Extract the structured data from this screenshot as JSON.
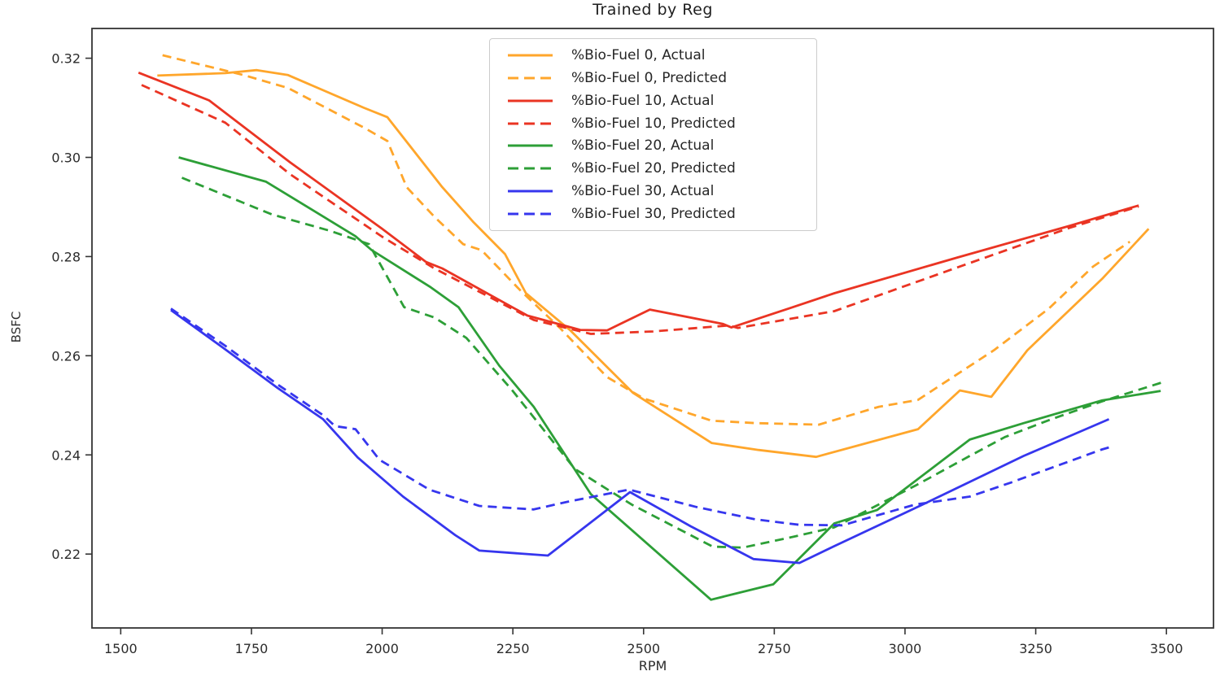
{
  "chart_data": {
    "type": "line",
    "title": "Trained by Reg",
    "xlabel": "RPM",
    "ylabel": "BSFC",
    "xlim": [
      1445,
      3590
    ],
    "ylim": [
      0.2051,
      0.326
    ],
    "xtick_labels": [
      "1500",
      "1750",
      "2000",
      "2250",
      "2500",
      "2750",
      "3000",
      "3250",
      "3500"
    ],
    "ytick_labels": [
      "0.22",
      "0.24",
      "0.26",
      "0.28",
      "0.30",
      "0.32"
    ],
    "grid": false,
    "legend_position": "upper center",
    "colors": {
      "bio_fuel_0": "#FFA62B",
      "bio_fuel_10": "#EA3423",
      "bio_fuel_20": "#2D9F37",
      "bio_fuel_30": "#3636EE"
    },
    "series": [
      {
        "name": "%Bio-Fuel 0, Actual",
        "color": "#FFA62B",
        "line_style": "solid",
        "x": [
          1570,
          1700,
          1760,
          1820,
          1965,
          2010,
          2115,
          2175,
          2235,
          2275,
          2360,
          2480,
          2630,
          2720,
          2830,
          3025,
          3105,
          3165,
          3234,
          3377,
          3466
        ],
        "y": [
          0.3165,
          0.317,
          0.3176,
          0.3166,
          0.31,
          0.3081,
          0.294,
          0.2869,
          0.2805,
          0.2726,
          0.2651,
          0.2525,
          0.2424,
          0.241,
          0.2396,
          0.2452,
          0.253,
          0.2517,
          0.2611,
          0.2755,
          0.2856
        ]
      },
      {
        "name": "%Bio-Fuel 0, Predicted",
        "color": "#FFA62B",
        "line_style": "dashed",
        "x": [
          1580,
          1735,
          1820,
          1965,
          2010,
          2047,
          2100,
          2155,
          2190,
          2265,
          2340,
          2430,
          2500,
          2630,
          2715,
          2835,
          2950,
          3025,
          3090,
          3170,
          3275,
          3360,
          3430
        ],
        "y": [
          0.3206,
          0.3166,
          0.314,
          0.306,
          0.3033,
          0.294,
          0.288,
          0.2825,
          0.2813,
          0.2731,
          0.2656,
          0.2557,
          0.2514,
          0.2469,
          0.2464,
          0.2461,
          0.2497,
          0.2511,
          0.2556,
          0.2611,
          0.2695,
          0.278,
          0.283
        ]
      },
      {
        "name": "%Bio-Fuel 10, Actual",
        "color": "#EA3423",
        "line_style": "solid",
        "x": [
          1534,
          1669,
          1824,
          2000,
          2084,
          2115,
          2278,
          2379,
          2430,
          2512,
          2652,
          2668,
          2780,
          2865,
          3100,
          3315,
          3447
        ],
        "y": [
          0.3171,
          0.3115,
          0.299,
          0.2856,
          0.2789,
          0.2776,
          0.2681,
          0.2652,
          0.2651,
          0.2693,
          0.2664,
          0.2657,
          0.2696,
          0.2726,
          0.2798,
          0.2862,
          0.2903
        ]
      },
      {
        "name": "%Bio-Fuel 10, Predicted",
        "color": "#EA3423",
        "line_style": "dashed",
        "x": [
          1540,
          1700,
          1824,
          2000,
          2100,
          2290,
          2399,
          2518,
          2663,
          2680,
          2865,
          3100,
          3315,
          3447
        ],
        "y": [
          0.3146,
          0.307,
          0.2966,
          0.284,
          0.2776,
          0.2672,
          0.2644,
          0.2649,
          0.2661,
          0.2656,
          0.269,
          0.2778,
          0.2858,
          0.2901
        ]
      },
      {
        "name": "%Bio-Fuel 20, Actual",
        "color": "#2D9F37",
        "line_style": "solid",
        "x": [
          1611,
          1778,
          1949,
          1980,
          2093,
          2146,
          2224,
          2290,
          2399,
          2629,
          2748,
          2865,
          2947,
          3124,
          3227,
          3377,
          3489
        ],
        "y": [
          0.3,
          0.2951,
          0.2841,
          0.2813,
          0.2738,
          0.2698,
          0.258,
          0.2497,
          0.2321,
          0.2108,
          0.2139,
          0.2262,
          0.2289,
          0.2431,
          0.2464,
          0.251,
          0.2529
        ]
      },
      {
        "name": "%Bio-Fuel 20, Predicted",
        "color": "#2D9F37",
        "line_style": "dashed",
        "x": [
          1617,
          1789,
          1900,
          1975,
          2042,
          2100,
          2161,
          2249,
          2368,
          2477,
          2632,
          2690,
          2783,
          2865,
          3020,
          3124,
          3191,
          3280,
          3377,
          3491
        ],
        "y": [
          0.2959,
          0.2885,
          0.2852,
          0.2825,
          0.2698,
          0.2677,
          0.2636,
          0.253,
          0.2372,
          0.23,
          0.2215,
          0.2213,
          0.2234,
          0.2254,
          0.2338,
          0.2398,
          0.2436,
          0.2472,
          0.2508,
          0.2546
        ]
      },
      {
        "name": "%Bio-Fuel 30, Actual",
        "color": "#3636EE",
        "line_style": "solid",
        "x": [
          1596,
          1696,
          1800,
          1887,
          1953,
          2040,
          2140,
          2186,
          2317,
          2474,
          2590,
          2710,
          2798,
          2865,
          3040,
          3227,
          3390
        ],
        "y": [
          0.2692,
          0.2616,
          0.2535,
          0.2472,
          0.2395,
          0.2316,
          0.2238,
          0.2207,
          0.2197,
          0.2325,
          0.2256,
          0.219,
          0.2182,
          0.2216,
          0.2303,
          0.2398,
          0.2472
        ]
      },
      {
        "name": "%Bio-Fuel 30, Predicted",
        "color": "#3636EE",
        "line_style": "dashed",
        "x": [
          1596,
          1700,
          1800,
          1887,
          1910,
          1949,
          1995,
          2090,
          2186,
          2290,
          2352,
          2472,
          2601,
          2714,
          2798,
          2880,
          3020,
          3124,
          3202,
          3377,
          3390
        ],
        "y": [
          0.2695,
          0.262,
          0.2542,
          0.248,
          0.2458,
          0.2452,
          0.239,
          0.233,
          0.2297,
          0.229,
          0.2305,
          0.233,
          0.2295,
          0.227,
          0.2259,
          0.2258,
          0.23,
          0.2316,
          0.2344,
          0.2411,
          0.2415
        ]
      }
    ]
  }
}
